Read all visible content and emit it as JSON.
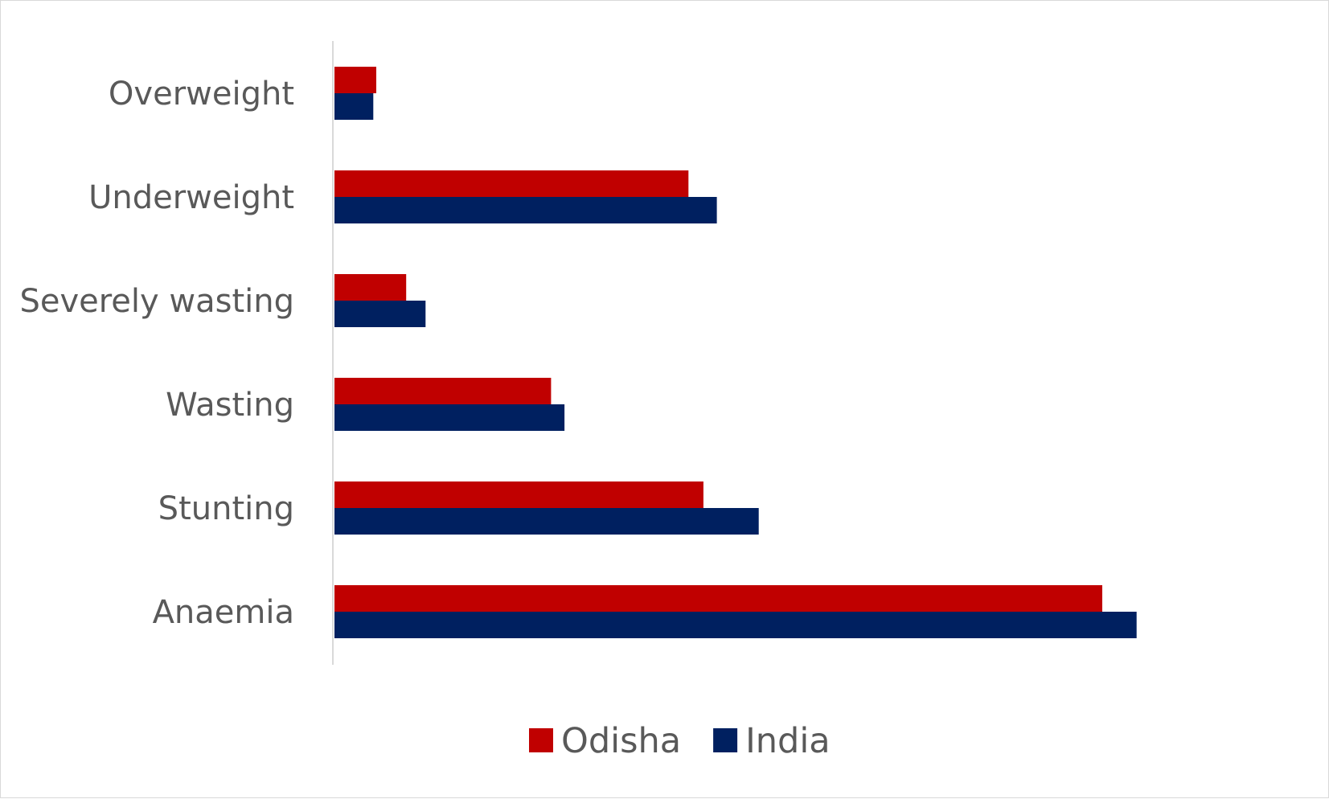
{
  "chart_data": {
    "type": "bar",
    "orientation": "horizontal",
    "categories": [
      "Overweight",
      "Underweight",
      "Severely wasting",
      "Wasting",
      "Stunting",
      "Anaemia"
    ],
    "series": [
      {
        "name": "Odisha",
        "color": "#C00000",
        "values": [
          2.8,
          23.7,
          4.8,
          14.5,
          24.7,
          51.4
        ]
      },
      {
        "name": "India",
        "color": "#002060",
        "values": [
          2.6,
          25.6,
          6.1,
          15.4,
          28.4,
          53.7
        ]
      }
    ],
    "xlim": [
      0,
      60
    ],
    "grid": false,
    "legend_position": "bottom",
    "title": "",
    "xlabel": "",
    "ylabel": ""
  }
}
